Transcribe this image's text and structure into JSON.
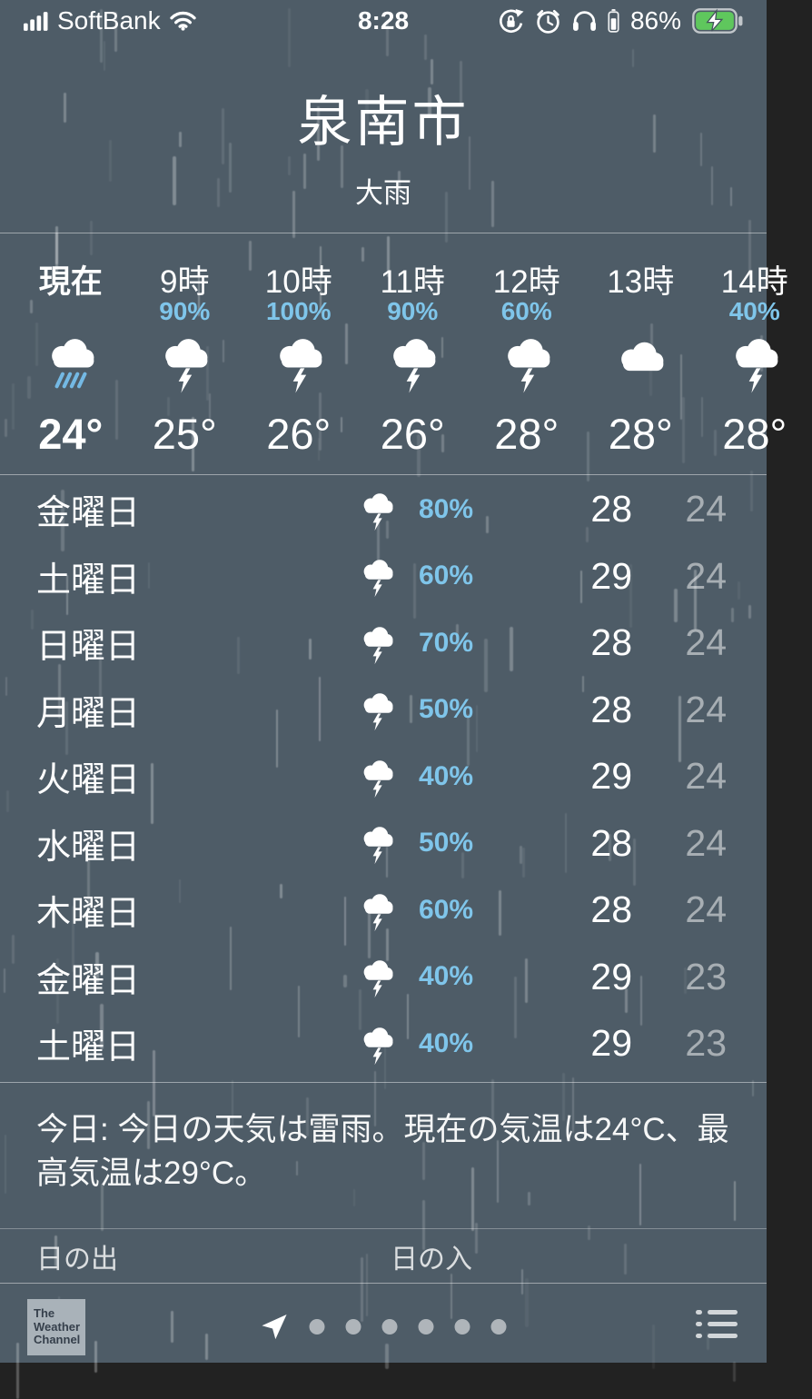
{
  "status_bar": {
    "carrier": "SoftBank",
    "time": "8:28",
    "battery_percent": "86%",
    "signal_bars": 4,
    "icons": [
      "signal-icon",
      "wifi-icon",
      "rotation-lock-icon",
      "alarm-icon",
      "headphones-icon",
      "headphone-battery-icon",
      "charging-battery-icon"
    ]
  },
  "header": {
    "city": "泉南市",
    "condition": "大雨"
  },
  "hourly": [
    {
      "label": "現在",
      "percent": "",
      "icon": "heavy-rain",
      "temp": "24°",
      "current": true
    },
    {
      "label": "9時",
      "percent": "90%",
      "icon": "thunderstorm",
      "temp": "25°",
      "current": false
    },
    {
      "label": "10時",
      "percent": "100%",
      "icon": "thunderstorm",
      "temp": "26°",
      "current": false
    },
    {
      "label": "11時",
      "percent": "90%",
      "icon": "thunderstorm",
      "temp": "26°",
      "current": false
    },
    {
      "label": "12時",
      "percent": "60%",
      "icon": "thunderstorm",
      "temp": "28°",
      "current": false
    },
    {
      "label": "13時",
      "percent": "",
      "icon": "cloudy",
      "temp": "28°",
      "current": false
    },
    {
      "label": "14時",
      "percent": "40%",
      "icon": "thunderstorm",
      "temp": "28°",
      "current": false
    }
  ],
  "daily": [
    {
      "day": "金曜日",
      "icon": "thunderstorm",
      "percent": "80%",
      "high": "28",
      "low": "24"
    },
    {
      "day": "土曜日",
      "icon": "thunderstorm",
      "percent": "60%",
      "high": "29",
      "low": "24"
    },
    {
      "day": "日曜日",
      "icon": "thunderstorm",
      "percent": "70%",
      "high": "28",
      "low": "24"
    },
    {
      "day": "月曜日",
      "icon": "thunderstorm",
      "percent": "50%",
      "high": "28",
      "low": "24"
    },
    {
      "day": "火曜日",
      "icon": "thunderstorm",
      "percent": "40%",
      "high": "29",
      "low": "24"
    },
    {
      "day": "水曜日",
      "icon": "thunderstorm",
      "percent": "50%",
      "high": "28",
      "low": "24"
    },
    {
      "day": "木曜日",
      "icon": "thunderstorm",
      "percent": "60%",
      "high": "28",
      "low": "24"
    },
    {
      "day": "金曜日",
      "icon": "thunderstorm",
      "percent": "40%",
      "high": "29",
      "low": "23"
    },
    {
      "day": "土曜日",
      "icon": "thunderstorm",
      "percent": "40%",
      "high": "29",
      "low": "23"
    }
  ],
  "summary": {
    "text": "今日: 今日の天気は雷雨。現在の気温は24°C、最高気温は29°C。"
  },
  "sun": {
    "sunrise_label": "日の出",
    "sunset_label": "日の入"
  },
  "footer": {
    "logo": {
      "line1": "The",
      "line2": "Weather",
      "line3": "Channel"
    },
    "page_count": 6,
    "icons": [
      "location-arrow-icon",
      "list-icon"
    ]
  },
  "colors": {
    "background": "#4e5c67",
    "precip_blue": "#7fc5ea",
    "rain_streak_blue": "#74b9e4",
    "battery_green": "#5fc75d",
    "low_temp_gray": "rgba(255,255,255,0.5)"
  }
}
